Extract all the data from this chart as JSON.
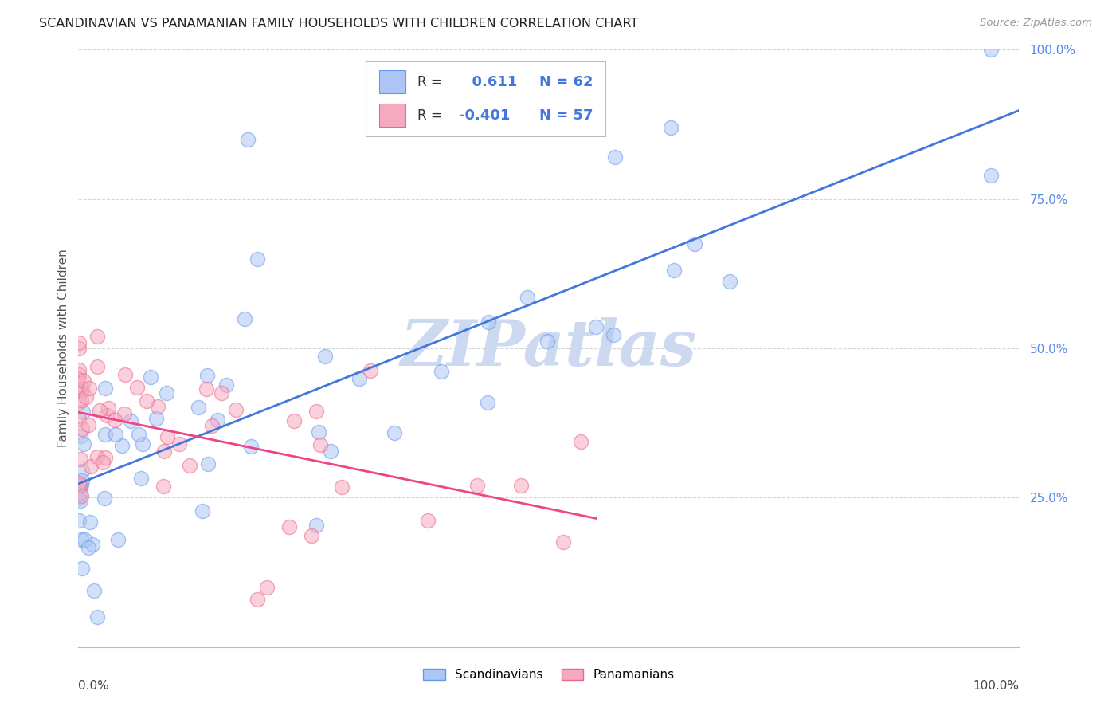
{
  "title": "SCANDINAVIAN VS PANAMANIAN FAMILY HOUSEHOLDS WITH CHILDREN CORRELATION CHART",
  "source": "Source: ZipAtlas.com",
  "ylabel": "Family Households with Children",
  "legend_label1": "Scandinavians",
  "legend_label2": "Panamanians",
  "r1": 0.611,
  "n1": 62,
  "r2": -0.401,
  "n2": 57,
  "background_color": "#ffffff",
  "grid_color": "#cccccc",
  "watermark_text": "ZIPatlas",
  "watermark_color": "#ccd9f0",
  "blue_scatter_face": "#adc6f5",
  "blue_scatter_edge": "#6699ee",
  "pink_scatter_face": "#f5aac0",
  "pink_scatter_edge": "#ee6688",
  "blue_line_color": "#4477dd",
  "pink_line_color": "#ee4488",
  "ytick_color": "#5588ee",
  "xtick_color": "#444444",
  "title_color": "#222222",
  "source_color": "#999999",
  "ylabel_color": "#555555"
}
